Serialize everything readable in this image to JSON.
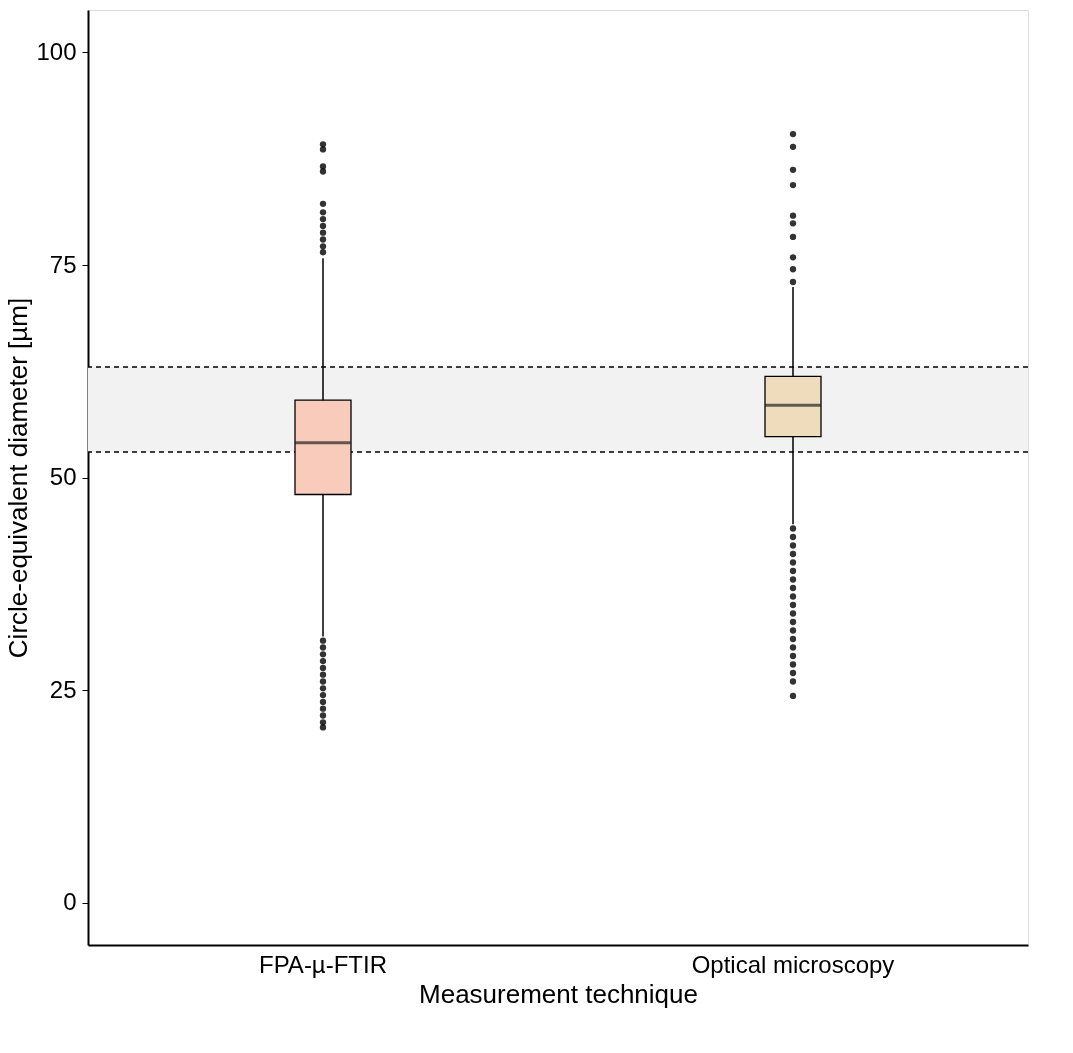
{
  "chart_data": {
    "type": "box",
    "xlabel": "Measurement technique",
    "ylabel": "Circle-equivalent diameter [µm]",
    "categories": [
      "FPA-µ-FTIR",
      "Optical microscopy"
    ],
    "colors": [
      "#f9cbbb",
      "#efdcbc"
    ],
    "boxes": [
      {
        "low": 31.3,
        "q1": 48.0,
        "median": 54.1,
        "q3": 59.1,
        "high": 75.8,
        "outliers": [
          20.6,
          21.2,
          22.0,
          22.8,
          23.6,
          24.4,
          25.2,
          26.0,
          26.8,
          27.6,
          28.4,
          29.2,
          30.0,
          30.8,
          76.5,
          77.2,
          78.0,
          78.8,
          79.6,
          80.4,
          81.2,
          82.2,
          86.0,
          86.6,
          88.6,
          89.2
        ]
      },
      {
        "low": 44.5,
        "q1": 54.8,
        "median": 58.5,
        "q3": 61.9,
        "high": 72.4,
        "outliers": [
          24.3,
          26.0,
          27.0,
          28.0,
          29.0,
          30.0,
          31.0,
          32.0,
          33.0,
          34.0,
          35.0,
          36.0,
          37.0,
          38.0,
          39.0,
          40.0,
          41.0,
          42.0,
          43.0,
          44.0,
          73.0,
          74.5,
          75.9,
          78.3,
          79.9,
          80.8,
          84.4,
          86.2,
          88.9,
          90.4
        ]
      }
    ],
    "bands": [
      {
        "axis": "y",
        "from": 53,
        "to": 63,
        "color": "#f2f2f2"
      }
    ],
    "ref_lines": [
      {
        "axis": "y",
        "value": 53,
        "color": "#000000",
        "line_style": "dashed"
      },
      {
        "axis": "y",
        "value": 63,
        "color": "#000000",
        "line_style": "dashed"
      }
    ],
    "ylim": [
      -5,
      105
    ],
    "yticks": [
      0,
      25,
      50,
      75,
      100
    ],
    "grid": false
  }
}
